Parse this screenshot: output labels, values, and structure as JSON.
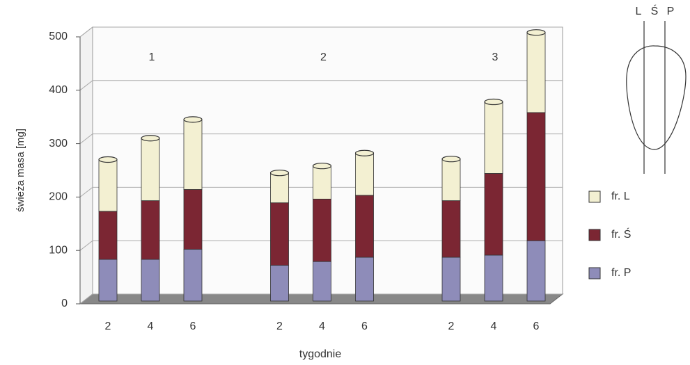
{
  "chart_data": {
    "type": "bar",
    "stacked": true,
    "ylabel": "świeża masa [mg]",
    "xlabel": "tygodnie",
    "groups": [
      "1",
      "2",
      "3"
    ],
    "categories": [
      "2",
      "4",
      "6",
      "2",
      "4",
      "6",
      "2",
      "4",
      "6"
    ],
    "series": [
      {
        "name": "fr. P",
        "color": "#8e8cb9",
        "values": [
          78,
          78,
          97,
          67,
          74,
          82,
          82,
          86,
          113
        ]
      },
      {
        "name": "fr. Ś",
        "color": "#7b2633",
        "values": [
          90,
          110,
          112,
          117,
          117,
          116,
          106,
          153,
          240
        ]
      },
      {
        "name": "fr. L",
        "color": "#f3f0d2",
        "values": [
          97,
          117,
          131,
          56,
          62,
          79,
          78,
          134,
          150
        ]
      }
    ],
    "ylim": [
      0,
      500
    ],
    "yticks": [
      0,
      100,
      200,
      300,
      400,
      500
    ],
    "grid": true,
    "diagram_labels": [
      "L",
      "Ś",
      "P"
    ]
  }
}
